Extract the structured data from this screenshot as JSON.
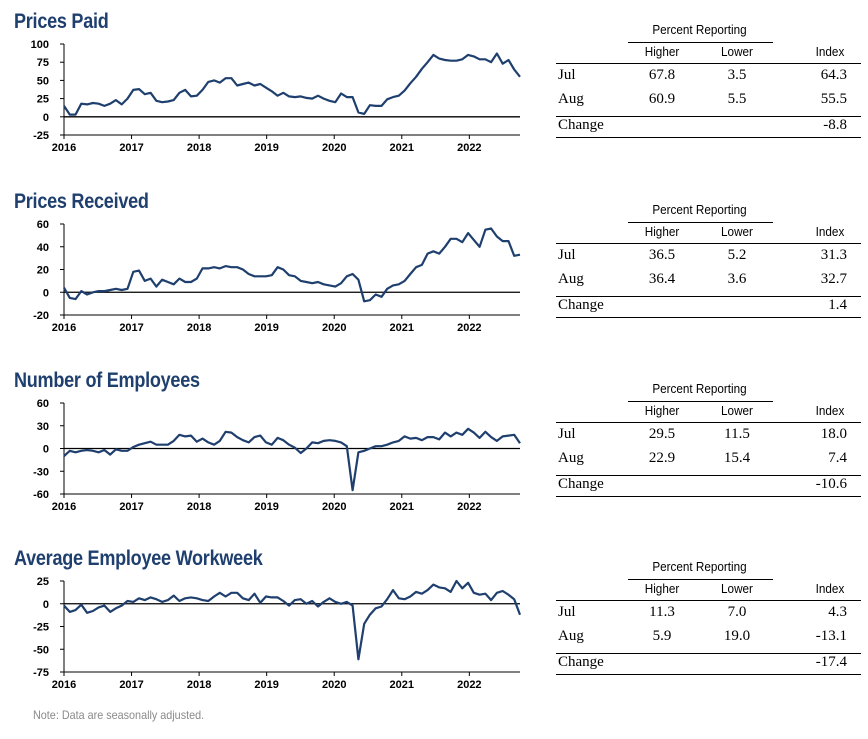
{
  "charts": [
    {
      "title": "Prices Paid",
      "chart_data": {
        "type": "line",
        "x_range": [
          2016,
          2022.75
        ],
        "ylim": [
          -25,
          100
        ],
        "yticks": [
          -25,
          0,
          25,
          50,
          75,
          100
        ],
        "xticks": [
          "2016",
          "2017",
          "2018",
          "2019",
          "2020",
          "2021",
          "2022"
        ],
        "series": [
          {
            "values": [
              15,
              3,
              3,
              18,
              17,
              19,
              18,
              15,
              18,
              23,
              17,
              25,
              37,
              38,
              31,
              33,
              22,
              20,
              21,
              23,
              33,
              37,
              28,
              29,
              37,
              48,
              50,
              47,
              53,
              53,
              43,
              45,
              47,
              43,
              45,
              40,
              35,
              29,
              33,
              28,
              27,
              28,
              26,
              25,
              29,
              25,
              22,
              20,
              32,
              27,
              27,
              6,
              4,
              16,
              15,
              15,
              24,
              27,
              29,
              36,
              46,
              55,
              66,
              75,
              85,
              80,
              78,
              77,
              77,
              79,
              85,
              83,
              79,
              79,
              75,
              87,
              73,
              78,
              65,
              55
            ]
          }
        ]
      },
      "table": {
        "group_label": "Percent Reporting",
        "columns": [
          "Higher",
          "Lower",
          "Index"
        ],
        "rows": [
          {
            "label": "Jul",
            "higher": "67.8",
            "lower": "3.5",
            "index": "64.3"
          },
          {
            "label": "Aug",
            "higher": "60.9",
            "lower": "5.5",
            "index": "55.5"
          }
        ],
        "change_label": "Change",
        "change": "-8.8"
      }
    },
    {
      "title": "Prices Received",
      "chart_data": {
        "type": "line",
        "x_range": [
          2016,
          2022.75
        ],
        "ylim": [
          -20,
          60
        ],
        "yticks": [
          -20,
          0,
          20,
          40,
          60
        ],
        "xticks": [
          "2016",
          "2017",
          "2018",
          "2019",
          "2020",
          "2021",
          "2022"
        ],
        "series": [
          {
            "values": [
              4,
              -5,
              -6,
              1,
              -2,
              0,
              1,
              1,
              2,
              3,
              2,
              3,
              18,
              19,
              10,
              12,
              5,
              11,
              9,
              7,
              12,
              9,
              9,
              12,
              21,
              21,
              22,
              21,
              23,
              22,
              22,
              20,
              16,
              14,
              14,
              14,
              15,
              22,
              20,
              15,
              14,
              10,
              9,
              8,
              9,
              7,
              6,
              5,
              8,
              14,
              16,
              11,
              -8,
              -7,
              -2,
              -4,
              3,
              6,
              7,
              10,
              16,
              22,
              24,
              34,
              36,
              34,
              40,
              47,
              47,
              44,
              52,
              46,
              40,
              55,
              56,
              49,
              45,
              45,
              32,
              33
            ]
          }
        ]
      },
      "table": {
        "group_label": "Percent Reporting",
        "columns": [
          "Higher",
          "Lower",
          "Index"
        ],
        "rows": [
          {
            "label": "Jul",
            "higher": "36.5",
            "lower": "5.2",
            "index": "31.3"
          },
          {
            "label": "Aug",
            "higher": "36.4",
            "lower": "3.6",
            "index": "32.7"
          }
        ],
        "change_label": "Change",
        "change": "1.4"
      }
    },
    {
      "title": "Number of Employees",
      "chart_data": {
        "type": "line",
        "x_range": [
          2016,
          2022.75
        ],
        "ylim": [
          -60,
          60
        ],
        "yticks": [
          -60,
          -30,
          0,
          30,
          60
        ],
        "xticks": [
          "2016",
          "2017",
          "2018",
          "2019",
          "2020",
          "2021",
          "2022"
        ],
        "series": [
          {
            "values": [
              -10,
              -3,
              -5,
              -3,
              -2,
              -3,
              -5,
              -2,
              -8,
              -1,
              -3,
              -3,
              2,
              5,
              7,
              9,
              5,
              5,
              5,
              10,
              18,
              16,
              17,
              9,
              13,
              8,
              5,
              10,
              22,
              21,
              15,
              11,
              8,
              15,
              17,
              8,
              5,
              14,
              11,
              5,
              1,
              -6,
              0,
              8,
              7,
              10,
              11,
              10,
              8,
              3,
              -55,
              -5,
              -3,
              0,
              3,
              3,
              5,
              8,
              10,
              16,
              13,
              14,
              11,
              15,
              15,
              12,
              21,
              16,
              21,
              18,
              26,
              21,
              14,
              22,
              15,
              10,
              16,
              17,
              18,
              7
            ]
          }
        ]
      },
      "table": {
        "group_label": "Percent Reporting",
        "columns": [
          "Higher",
          "Lower",
          "Index"
        ],
        "rows": [
          {
            "label": "Jul",
            "higher": "29.5",
            "lower": "11.5",
            "index": "18.0"
          },
          {
            "label": "Aug",
            "higher": "22.9",
            "lower": "15.4",
            "index": "7.4"
          }
        ],
        "change_label": "Change",
        "change": "-10.6"
      }
    },
    {
      "title": "Average Employee Workweek",
      "chart_data": {
        "type": "line",
        "x_range": [
          2016,
          2022.75
        ],
        "ylim": [
          -75,
          25
        ],
        "yticks": [
          -75,
          -50,
          -25,
          0,
          25
        ],
        "xticks": [
          "2016",
          "2017",
          "2018",
          "2019",
          "2020",
          "2021",
          "2022"
        ],
        "series": [
          {
            "values": [
              -2,
              -9,
              -7,
              -1,
              -10,
              -8,
              -4,
              -2,
              -9,
              -5,
              -2,
              3,
              2,
              6,
              4,
              7,
              5,
              2,
              4,
              9,
              3,
              6,
              7,
              6,
              4,
              3,
              8,
              12,
              8,
              12,
              12,
              6,
              4,
              11,
              1,
              8,
              7,
              7,
              3,
              -2,
              4,
              5,
              0,
              3,
              -3,
              2,
              6,
              2,
              0,
              2,
              -2,
              -61,
              -22,
              -12,
              -5,
              -3,
              5,
              15,
              6,
              5,
              8,
              13,
              11,
              15,
              21,
              18,
              17,
              13,
              25,
              17,
              23,
              12,
              10,
              11,
              4,
              12,
              14,
              10,
              5,
              -12
            ]
          }
        ]
      },
      "table": {
        "group_label": "Percent Reporting",
        "columns": [
          "Higher",
          "Lower",
          "Index"
        ],
        "rows": [
          {
            "label": "Jul",
            "higher": "11.3",
            "lower": "7.0",
            "index": "4.3"
          },
          {
            "label": "Aug",
            "higher": "5.9",
            "lower": "19.0",
            "index": "-13.1"
          }
        ],
        "change_label": "Change",
        "change": "-17.4"
      }
    }
  ],
  "note": "Note: Data are seasonally adjusted.",
  "colors": {
    "line": "#1f3f6e",
    "title": "#1f3f6e",
    "note": "#8a8a8a"
  }
}
